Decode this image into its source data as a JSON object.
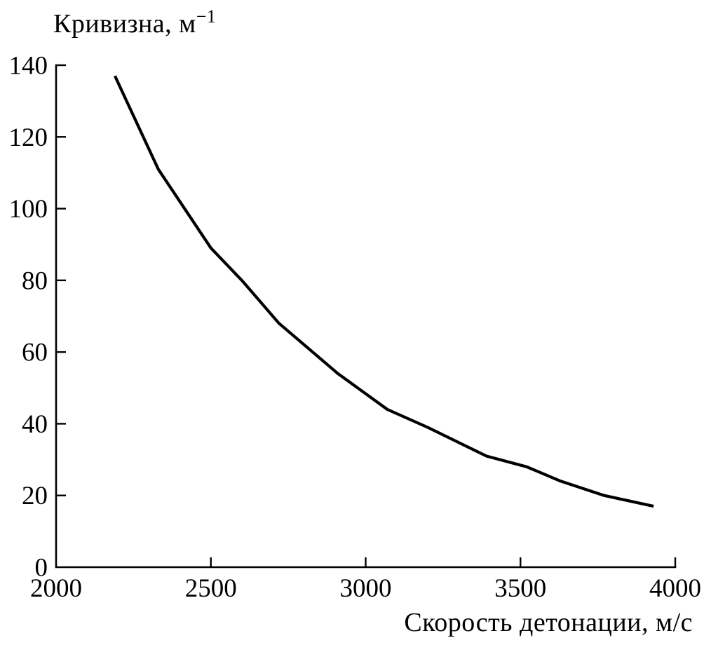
{
  "figure": {
    "background": "#ffffff",
    "line_color": "#000000",
    "axis_color": "#000000"
  },
  "chart_data": {
    "type": "line",
    "title": "",
    "y_axis_title_base": "Кривизна, м",
    "y_axis_title_sup": "−1",
    "xlabel": "Скорость детонации, м/с",
    "ylabel": "Кривизна, м⁻¹",
    "xlim": [
      2000,
      4000
    ],
    "ylim": [
      0,
      140
    ],
    "x_ticks": [
      2000,
      2500,
      3000,
      3500,
      4000
    ],
    "y_ticks": [
      0,
      20,
      40,
      60,
      80,
      100,
      120,
      140
    ],
    "grid": false,
    "legend_position": "none",
    "series": [
      {
        "name": "curvature-vs-detonation-velocity",
        "color": "#000000",
        "x": [
          2190,
          2330,
          2500,
          2600,
          2720,
          2910,
          3070,
          3200,
          3390,
          3520,
          3630,
          3770,
          3930
        ],
        "y": [
          137,
          111,
          89,
          80,
          68,
          54,
          44,
          39,
          31,
          28,
          24,
          20,
          17
        ]
      }
    ]
  }
}
